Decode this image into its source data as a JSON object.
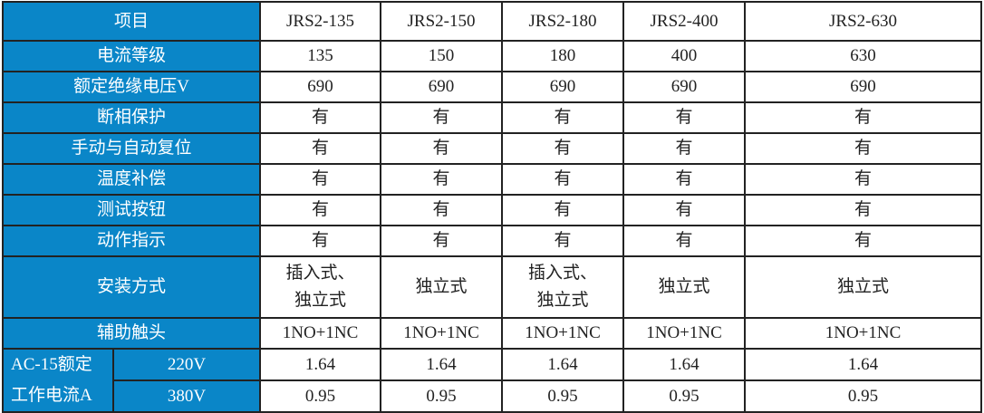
{
  "header": {
    "label": "项目",
    "models": [
      "JRS2-135",
      "JRS2-150",
      "JRS2-180",
      "JRS2-400",
      "JRS2-630"
    ]
  },
  "rows": [
    {
      "label": "电流等级",
      "values": [
        "135",
        "150",
        "180",
        "400",
        "630"
      ]
    },
    {
      "label": "额定绝缘电压V",
      "values": [
        "690",
        "690",
        "690",
        "690",
        "690"
      ]
    },
    {
      "label": "断相保护",
      "values": [
        "有",
        "有",
        "有",
        "有",
        "有"
      ]
    },
    {
      "label": "手动与自动复位",
      "values": [
        "有",
        "有",
        "有",
        "有",
        "有"
      ]
    },
    {
      "label": "温度补偿",
      "values": [
        "有",
        "有",
        "有",
        "有",
        "有"
      ]
    },
    {
      "label": "测试按钮",
      "values": [
        "有",
        "有",
        "有",
        "有",
        "有"
      ]
    },
    {
      "label": "动作指示",
      "values": [
        "有",
        "有",
        "有",
        "有",
        "有"
      ]
    }
  ],
  "install": {
    "label": "安装方式",
    "values": [
      [
        "插入式、",
        "独立式"
      ],
      [
        "独立式"
      ],
      [
        "插入式、",
        "独立式"
      ],
      [
        "独立式"
      ],
      [
        "独立式"
      ]
    ]
  },
  "aux": {
    "label": "辅助触头",
    "values": [
      "1NO+1NC",
      "1NO+1NC",
      "1NO+1NC",
      "1NO+1NC",
      "1NO+1NC"
    ]
  },
  "ac15": {
    "label_line1": "AC-15额定",
    "label_line2": "工作电流A",
    "rows": [
      {
        "voltage": "220V",
        "values": [
          "1.64",
          "1.64",
          "1.64",
          "1.64",
          "1.64"
        ]
      },
      {
        "voltage": "380V",
        "values": [
          "0.95",
          "0.95",
          "0.95",
          "0.95",
          "0.95"
        ]
      }
    ]
  },
  "colors": {
    "label_bg": "#0a86c8",
    "border": "#222222"
  }
}
